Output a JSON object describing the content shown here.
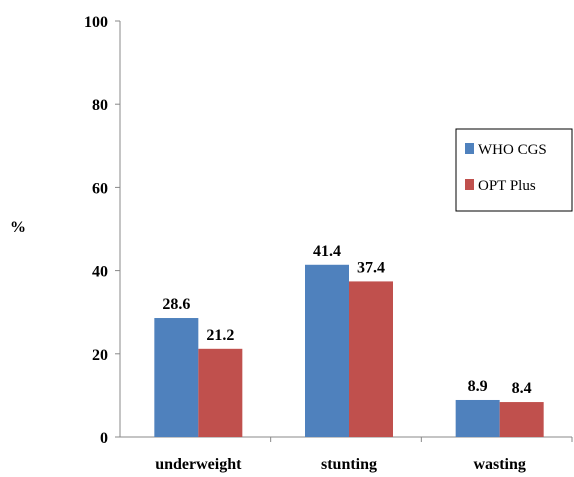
{
  "chart_data": {
    "type": "bar",
    "title": "",
    "xlabel": "",
    "ylabel": "%",
    "ylim": [
      0,
      100
    ],
    "yticks": [
      0,
      20,
      40,
      60,
      80,
      100
    ],
    "grid": false,
    "legend_position": "right",
    "categories": [
      "underweight",
      "stunting",
      "wasting"
    ],
    "series": [
      {
        "name": "WHO CGS",
        "color": "#4F81BD",
        "values": [
          28.6,
          41.4,
          8.9
        ],
        "labels": [
          "28.6",
          "41.4",
          "8.9"
        ]
      },
      {
        "name": "OPT Plus",
        "color": "#C0504D",
        "values": [
          21.2,
          37.4,
          8.4
        ],
        "labels": [
          "21.2",
          "37.4",
          "8.4"
        ]
      }
    ]
  }
}
